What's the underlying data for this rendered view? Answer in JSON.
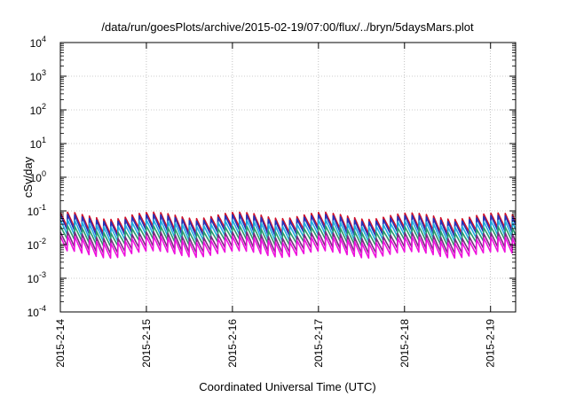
{
  "chart_data": {
    "type": "line",
    "title": "/data/run/goesPlots/archive/2015-02-19/07:00/flux/../bryn/5daysMars.plot",
    "xlabel": "Coordinated Universal Time (UTC)",
    "ylabel": "cSv/day",
    "y_scale": "log",
    "ylim": [
      0.0001,
      10000
    ],
    "y_ticks": [
      {
        "base": "10",
        "exp": "-4",
        "value": 0.0001
      },
      {
        "base": "10",
        "exp": "-3",
        "value": 0.001
      },
      {
        "base": "10",
        "exp": "-2",
        "value": 0.01
      },
      {
        "base": "10",
        "exp": "-1",
        "value": 0.1
      },
      {
        "base": "10",
        "exp": "0",
        "value": 1
      },
      {
        "base": "10",
        "exp": "1",
        "value": 10
      },
      {
        "base": "10",
        "exp": "2",
        "value": 100
      },
      {
        "base": "10",
        "exp": "3",
        "value": 1000
      },
      {
        "base": "10",
        "exp": "4",
        "value": 10000
      }
    ],
    "xlim": [
      "2015-02-14 00:00",
      "2015-02-19 07:00"
    ],
    "x_ticks": [
      "2015-2-14",
      "2015-2-15",
      "2015-2-16",
      "2015-2-17",
      "2015-2-18",
      "2015-2-19"
    ],
    "grid": true,
    "cycle_hours": 2,
    "series": [
      {
        "color": "#d0102a",
        "peak": 0.092,
        "trough": 0.032
      },
      {
        "color": "#2233bb",
        "peak": 0.078,
        "trough": 0.026
      },
      {
        "color": "#1eaee0",
        "peak": 0.055,
        "trough": 0.019
      },
      {
        "color": "#2a9a6a",
        "peak": 0.036,
        "trough": 0.014
      },
      {
        "color": "#7a2a80",
        "peak": 0.024,
        "trough": 0.0085
      },
      {
        "color": "#ee10dd",
        "peak": 0.018,
        "trough": 0.0062
      }
    ]
  }
}
